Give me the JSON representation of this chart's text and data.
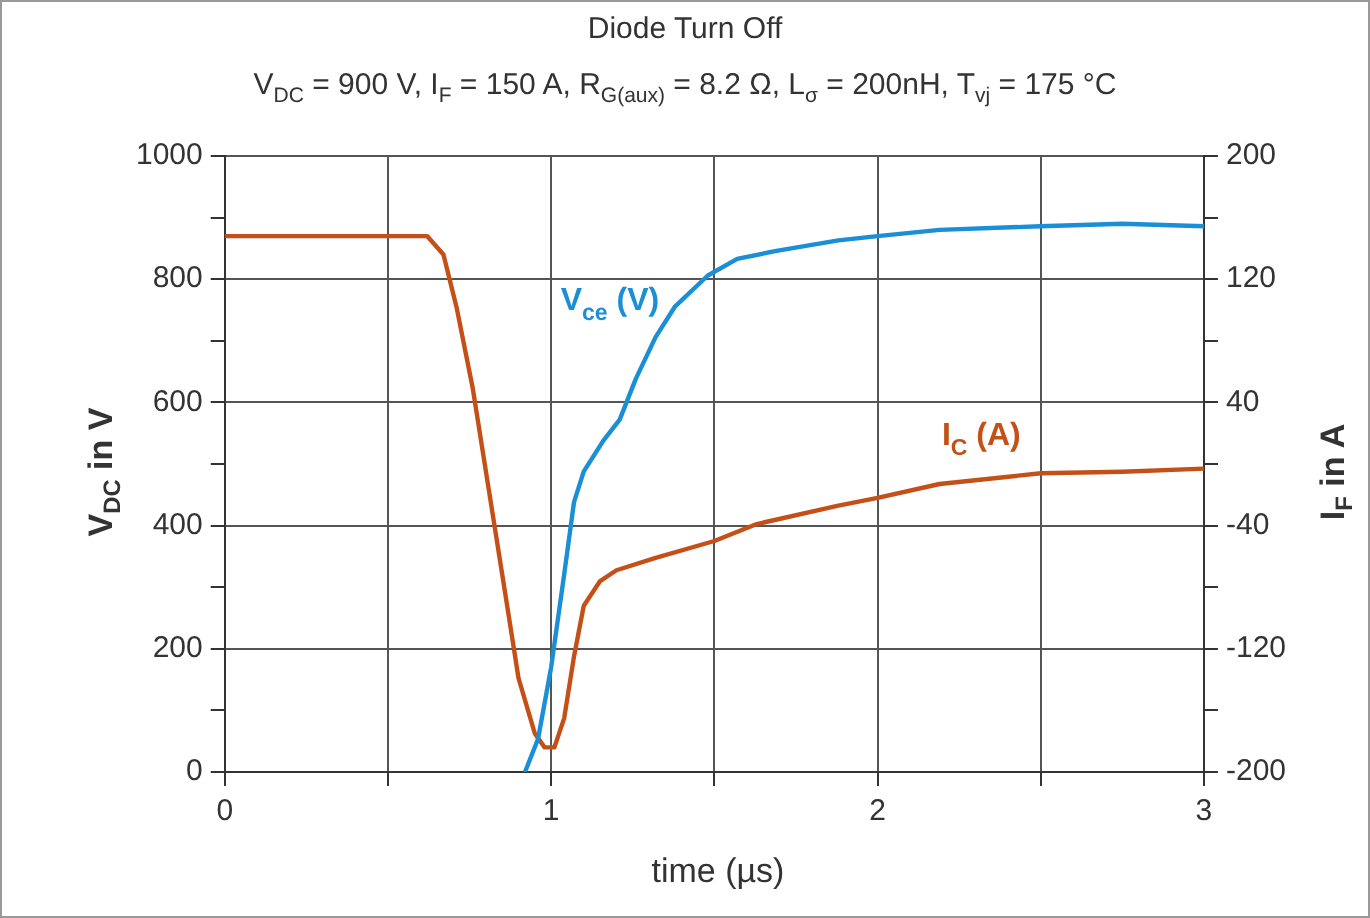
{
  "chart_data": {
    "type": "line",
    "title": "Diode Turn Off",
    "subtitle": "V$_{DC}$ = 900 V, I$_{F}$ = 150 A, R$_{G(aux)}$ = 8.2 Ω, L$_{σ}$ = 200nH, T$_{vj}$ = 175 °C",
    "xlabel": "time (µs)",
    "ylabel": "V$_{DC}$ in V",
    "y2label": "I$_{F}$ in A",
    "xlim": [
      0,
      3
    ],
    "xticks": [
      0,
      {
        "value": 0.5,
        "label": null
      },
      1,
      {
        "value": 1.5,
        "label": null
      },
      2,
      {
        "value": 2.5,
        "label": null
      },
      3
    ],
    "ylim": [
      0,
      1000
    ],
    "yticks": [
      0,
      {
        "value": 100,
        "label": null
      },
      200,
      {
        "value": 300,
        "label": null
      },
      400,
      {
        "value": 500,
        "label": null
      },
      600,
      {
        "value": 700,
        "label": null
      },
      800,
      {
        "value": 900,
        "label": null
      },
      1000
    ],
    "y2lim": [
      -200,
      200
    ],
    "y2ticks": [
      -200,
      {
        "value": -160,
        "label": null
      },
      -120,
      {
        "value": -80,
        "label": null
      },
      -40,
      {
        "value": 0,
        "label": null
      },
      40,
      {
        "value": 80,
        "label": null
      },
      120,
      {
        "value": 160,
        "label": null
      },
      200
    ],
    "grid": true,
    "marker": "none",
    "line_style": "solid",
    "series": [
      {
        "name": "V$_{ce}$ (V)",
        "color": "#1a8fd6",
        "x": [
          0.92,
          0.96,
          1.0,
          1.04,
          1.07,
          1.1,
          1.16,
          1.21,
          1.26,
          1.32,
          1.38,
          1.48,
          1.57,
          1.69,
          1.88,
          2.0,
          2.19,
          2.5,
          2.75,
          3.0
        ],
        "values": [
          0,
          54,
          170,
          321,
          438,
          488,
          538,
          572,
          639,
          706,
          756,
          806,
          833,
          846,
          863,
          870,
          880,
          886,
          890,
          886
        ]
      },
      {
        "name": "I$_{C}$ (A)",
        "color": "#c45018",
        "axis": "y2",
        "x": [
          0,
          0.3,
          0.62,
          0.67,
          0.71,
          0.76,
          0.81,
          0.86,
          0.9,
          0.95,
          0.98,
          1.01,
          1.04,
          1.07,
          1.1,
          1.15,
          1.2,
          1.32,
          1.5,
          1.63,
          1.88,
          2.0,
          2.19,
          2.5,
          2.75,
          3.0
        ],
        "values": [
          148,
          148,
          148,
          136,
          102,
          49,
          -18,
          -85,
          -139,
          -175,
          -184,
          -184,
          -165,
          -125,
          -92,
          -76,
          -69,
          -61,
          -50,
          -39,
          -27,
          -22,
          -13,
          -6,
          -5,
          -3
        ]
      }
    ]
  }
}
